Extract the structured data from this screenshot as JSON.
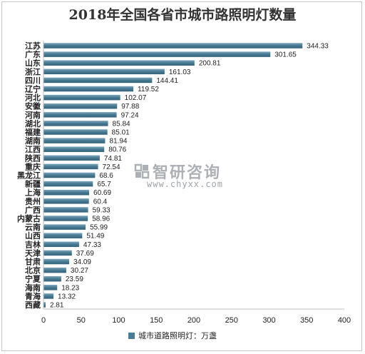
{
  "chart_data": {
    "type": "bar",
    "orientation": "horizontal",
    "title": "2018年全国各省市城市路照明灯数量",
    "categories": [
      "江苏",
      "广东",
      "山东",
      "浙江",
      "四川",
      "辽宁",
      "河北",
      "安徽",
      "河南",
      "湖北",
      "福建",
      "湖南",
      "江西",
      "陕西",
      "重庆",
      "黑龙江",
      "新疆",
      "上海",
      "贵州",
      "广西",
      "内蒙古",
      "云南",
      "山西",
      "吉林",
      "天津",
      "甘肃",
      "北京",
      "宁夏",
      "海南",
      "青海",
      "西藏"
    ],
    "series": [
      {
        "name": "城市道路照明灯：万盏",
        "values": [
          344.33,
          301.65,
          200.81,
          161.03,
          144.41,
          119.52,
          102.07,
          97.88,
          97.24,
          85.84,
          85.01,
          81.94,
          80.76,
          74.81,
          72.54,
          68.6,
          65.7,
          60.69,
          60.4,
          59.33,
          58.96,
          55.99,
          51.49,
          47.33,
          37.69,
          34.09,
          30.27,
          23.59,
          18.23,
          13.32,
          2.81
        ],
        "value_labels": [
          "344.33",
          "301.65",
          "200.81",
          "161.03",
          "144.41",
          "119.52",
          "102.07",
          "97.88",
          "97.24",
          "85.84",
          "85.01",
          "81.94",
          "80.76",
          "74.81",
          "72.54",
          "68.6",
          "65.7",
          "60.69",
          "60.4",
          "59.33",
          "58.96",
          "55.99",
          "51.49",
          "47.33",
          "37.69",
          "34.09",
          "30.27",
          "23.59",
          "18.23",
          "13.32",
          "2.81"
        ]
      }
    ],
    "xlim": [
      0,
      400
    ],
    "xticks": [
      0,
      50,
      100,
      150,
      200,
      250,
      300,
      350,
      400
    ],
    "grid": false,
    "legend_position": "bottom",
    "bar_color": "#4a7c96",
    "bar_color_dark": "#35627a"
  },
  "watermark": {
    "name": "智研咨询",
    "url": "www.chyxx.com"
  }
}
